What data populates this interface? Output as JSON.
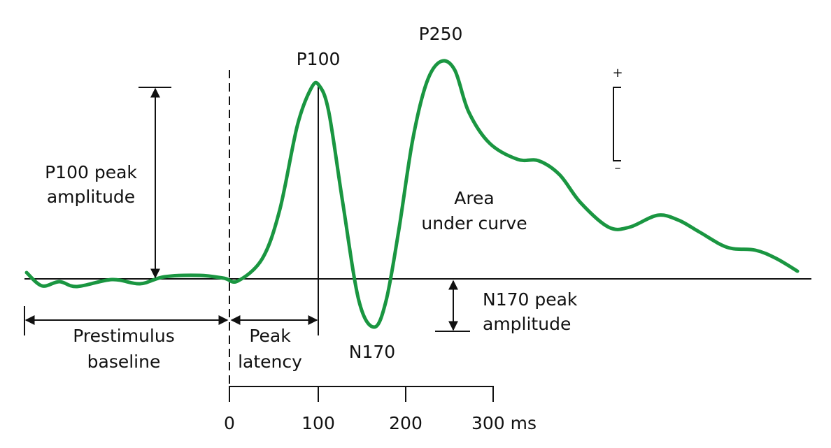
{
  "peaks": {
    "p100": "P100",
    "p250": "P250",
    "n170": "N170"
  },
  "annotations": {
    "p100_amplitude": [
      "P100 peak",
      "amplitude"
    ],
    "n170_amplitude": [
      "N170 peak",
      "amplitude"
    ],
    "area": [
      "Area",
      "under curve"
    ],
    "prestimulus": [
      "Prestimulus",
      "baseline"
    ],
    "peak_latency": [
      "Peak",
      "latency"
    ]
  },
  "time_axis": {
    "ticks": [
      "0",
      "100",
      "200",
      "300 ms"
    ]
  },
  "polarity": {
    "plus": "+",
    "minus": "–"
  }
}
